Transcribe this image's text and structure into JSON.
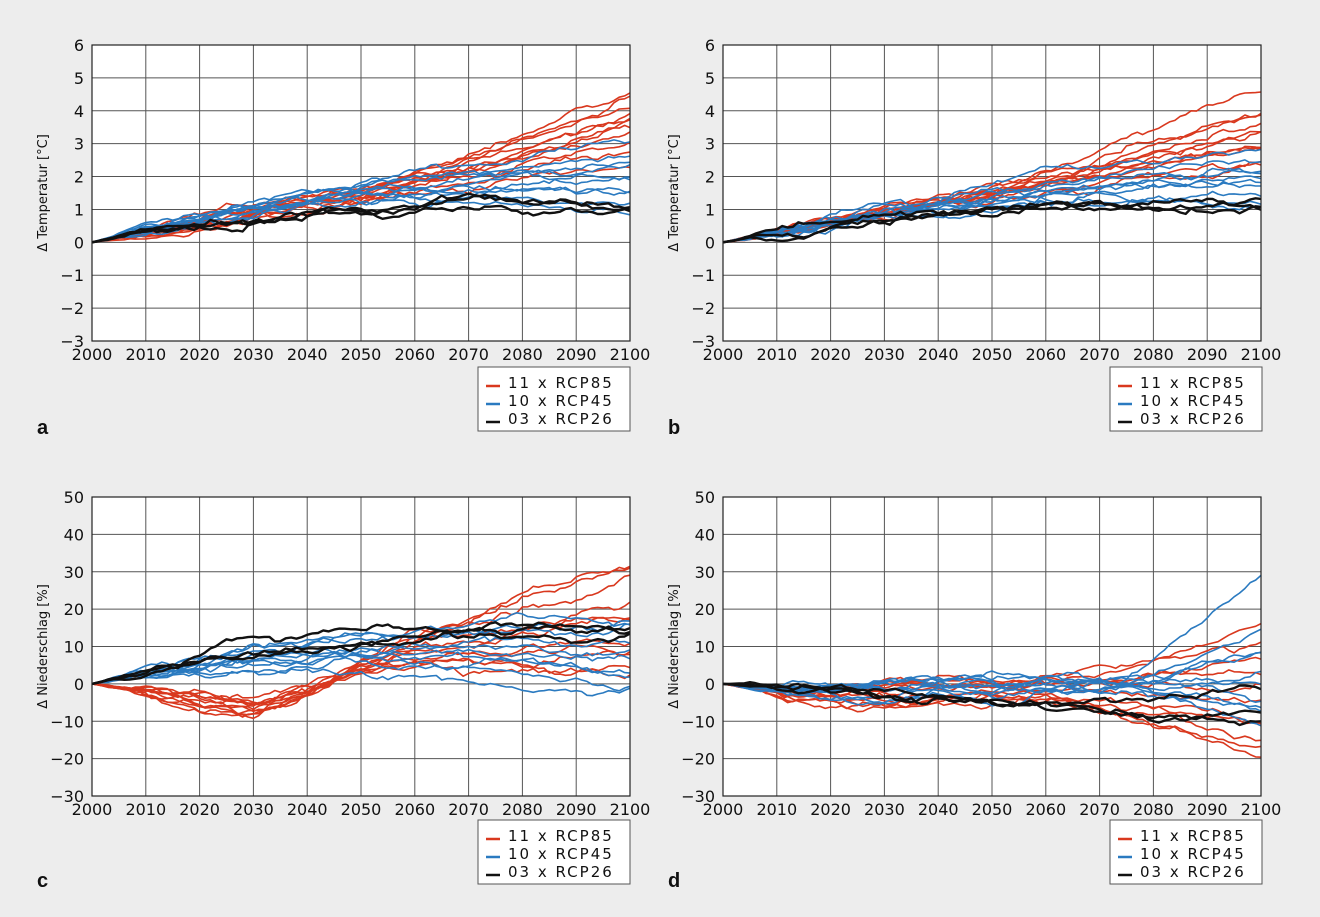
{
  "figure": {
    "panels": [
      "a",
      "b",
      "c",
      "d"
    ]
  },
  "legend": {
    "entries": [
      {
        "label": "11  x  RCP85",
        "color": "#d9381e"
      },
      {
        "label": "10  x  RCP45",
        "color": "#2a7ac0"
      },
      {
        "label": "03  x  RCP26",
        "color": "#111111"
      }
    ]
  },
  "chart_data": [
    {
      "type": "line",
      "panel": "a",
      "title": "",
      "xlabel": "",
      "ylabel": "Δ Temperatur [°C]",
      "xlim": [
        2000,
        2100
      ],
      "ylim": [
        -3,
        6
      ],
      "xticks": [
        2000,
        2010,
        2020,
        2030,
        2040,
        2050,
        2060,
        2070,
        2080,
        2090,
        2100
      ],
      "yticks": [
        -3,
        -2,
        -1,
        0,
        1,
        2,
        3,
        4,
        5,
        6
      ],
      "grid": true,
      "legend_position": "below-right",
      "x": [
        2000,
        2010,
        2020,
        2030,
        2040,
        2050,
        2060,
        2070,
        2080,
        2090,
        2100
      ],
      "series": [
        {
          "name": "11 x RCP85",
          "color": "#d9381e",
          "count": 11,
          "endpoints_2100": [
            4.6,
            4.3,
            4.1,
            3.9,
            3.8,
            3.6,
            3.5,
            3.2,
            3.0,
            2.7,
            2.2
          ],
          "typical": [
            0,
            0.3,
            0.6,
            0.9,
            1.2,
            1.5,
            1.9,
            2.3,
            2.8,
            3.3,
            3.7
          ]
        },
        {
          "name": "10 x RCP45",
          "color": "#2a7ac0",
          "count": 10,
          "endpoints_2100": [
            2.9,
            2.6,
            2.4,
            2.2,
            2.1,
            2.0,
            1.7,
            1.5,
            1.3,
            1.1
          ],
          "typical": [
            0,
            0.4,
            0.7,
            1.0,
            1.3,
            1.5,
            1.7,
            1.8,
            1.9,
            2.0,
            2.1
          ]
        },
        {
          "name": "03 x RCP26",
          "color": "#111111",
          "count": 3,
          "endpoints_2100": [
            1.3,
            1.2,
            1.1
          ],
          "typical": [
            0,
            0.3,
            0.5,
            0.7,
            0.9,
            1.0,
            1.1,
            1.2,
            1.2,
            1.2,
            1.2
          ]
        }
      ]
    },
    {
      "type": "line",
      "panel": "b",
      "title": "",
      "xlabel": "",
      "ylabel": "Δ Temperatur [°C]",
      "xlim": [
        2000,
        2100
      ],
      "ylim": [
        -3,
        6
      ],
      "xticks": [
        2000,
        2010,
        2020,
        2030,
        2040,
        2050,
        2060,
        2070,
        2080,
        2090,
        2100
      ],
      "yticks": [
        -3,
        -2,
        -1,
        0,
        1,
        2,
        3,
        4,
        5,
        6
      ],
      "grid": true,
      "legend_position": "below-right",
      "x": [
        2000,
        2010,
        2020,
        2030,
        2040,
        2050,
        2060,
        2070,
        2080,
        2090,
        2100
      ],
      "series": [
        {
          "name": "11 x RCP85",
          "color": "#d9381e",
          "count": 11,
          "endpoints_2100": [
            4.8,
            4.0,
            3.9,
            3.6,
            3.5,
            3.3,
            3.0,
            2.9,
            2.8,
            2.6,
            2.4
          ],
          "typical": [
            0,
            0.3,
            0.6,
            0.9,
            1.2,
            1.5,
            1.9,
            2.3,
            2.7,
            3.1,
            3.5
          ]
        },
        {
          "name": "10 x RCP45",
          "color": "#2a7ac0",
          "count": 10,
          "endpoints_2100": [
            2.8,
            2.6,
            2.3,
            2.1,
            1.9,
            1.8,
            1.7,
            1.5,
            1.4,
            1.2
          ],
          "typical": [
            0,
            0.3,
            0.6,
            0.9,
            1.1,
            1.3,
            1.5,
            1.6,
            1.7,
            1.8,
            1.9
          ]
        },
        {
          "name": "03 x RCP26",
          "color": "#111111",
          "count": 3,
          "endpoints_2100": [
            1.3,
            1.2,
            1.1
          ],
          "typical": [
            0,
            0.3,
            0.5,
            0.7,
            0.9,
            1.1,
            1.2,
            1.2,
            1.2,
            1.2,
            1.2
          ]
        }
      ]
    },
    {
      "type": "line",
      "panel": "c",
      "title": "",
      "xlabel": "",
      "ylabel": "Δ Niederschlag [%]",
      "xlim": [
        2000,
        2100
      ],
      "ylim": [
        -30,
        50
      ],
      "xticks": [
        2000,
        2010,
        2020,
        2030,
        2040,
        2050,
        2060,
        2070,
        2080,
        2090,
        2100
      ],
      "yticks": [
        -30,
        -20,
        -10,
        0,
        10,
        20,
        30,
        40,
        50
      ],
      "grid": true,
      "legend_position": "below-right",
      "x": [
        2000,
        2010,
        2020,
        2030,
        2040,
        2050,
        2060,
        2070,
        2080,
        2090,
        2100
      ],
      "series": [
        {
          "name": "11 x RCP85",
          "color": "#d9381e",
          "count": 11,
          "endpoints_2100": [
            32,
            30,
            26,
            22,
            18,
            15,
            12,
            10,
            7,
            4,
            2
          ],
          "typical": [
            0,
            -2,
            -5,
            -7,
            -2,
            5,
            9,
            11,
            14,
            16,
            17
          ]
        },
        {
          "name": "10 x RCP45",
          "color": "#2a7ac0",
          "count": 10,
          "endpoints_2100": [
            17,
            15,
            14,
            11,
            9,
            7,
            5,
            3,
            0,
            -2
          ],
          "typical": [
            0,
            3,
            5,
            7,
            8,
            9,
            9,
            9,
            9,
            8,
            8
          ]
        },
        {
          "name": "03 x RCP26",
          "color": "#111111",
          "count": 3,
          "endpoints_2100": [
            17,
            15,
            13
          ],
          "typical": [
            0,
            3,
            7,
            10,
            12,
            13,
            13,
            13,
            14,
            14,
            15
          ]
        }
      ]
    },
    {
      "type": "line",
      "panel": "d",
      "title": "",
      "xlabel": "",
      "ylabel": "Δ Niederschlag [%]",
      "xlim": [
        2000,
        2100
      ],
      "ylim": [
        -30,
        50
      ],
      "xticks": [
        2000,
        2010,
        2020,
        2030,
        2040,
        2050,
        2060,
        2070,
        2080,
        2090,
        2100
      ],
      "yticks": [
        -30,
        -20,
        -10,
        0,
        10,
        20,
        30,
        40,
        50
      ],
      "grid": true,
      "legend_position": "below-right",
      "x": [
        2000,
        2010,
        2020,
        2030,
        2040,
        2050,
        2060,
        2070,
        2080,
        2090,
        2100
      ],
      "series": [
        {
          "name": "11 x RCP85",
          "color": "#d9381e",
          "count": 11,
          "endpoints_2100": [
            16,
            11,
            7,
            3,
            0,
            -4,
            -8,
            -11,
            -14,
            -16,
            -18
          ],
          "typical": [
            0,
            -2,
            -3,
            -3,
            -2,
            -1,
            -1,
            -2,
            -3,
            -4,
            -5
          ]
        },
        {
          "name": "10 x RCP45",
          "color": "#2a7ac0",
          "count": 10,
          "endpoints_2100": [
            29,
            12,
            10,
            7,
            3,
            0,
            -3,
            -6,
            -8,
            -10
          ],
          "typical": [
            0,
            -1,
            -2,
            -2,
            -1,
            -1,
            0,
            0,
            1,
            2,
            3
          ]
        },
        {
          "name": "03 x RCP26",
          "color": "#111111",
          "count": 3,
          "endpoints_2100": [
            -3,
            -6,
            -8
          ],
          "typical": [
            0,
            -1,
            -2,
            -4,
            -5,
            -6,
            -6,
            -8,
            -9,
            -9,
            -8
          ]
        }
      ]
    }
  ]
}
